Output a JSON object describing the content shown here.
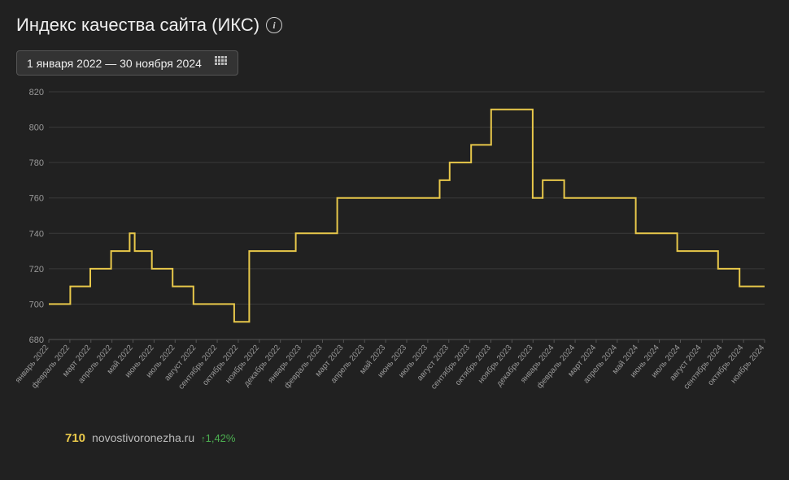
{
  "title": "Индекс качества сайта (ИКС)",
  "date_range": "1 января 2022 — 30 ноября 2024",
  "footer": {
    "value": "710",
    "domain": "novostivoronezha.ru",
    "change": "1,42%"
  },
  "chart": {
    "type": "step-line",
    "background_color": "#212121",
    "grid_color": "#3a3a3a",
    "axis_color": "#555",
    "line_color": "#e8c84a",
    "line_width": 2,
    "ylim": [
      680,
      820
    ],
    "ytick_step": 20,
    "y_ticks": [
      680,
      700,
      720,
      740,
      760,
      780,
      800,
      820
    ],
    "label_color": "#999",
    "label_fontsize": 11,
    "x_labels": [
      "январь 2022",
      "февраль 2022",
      "март 2022",
      "апрель 2022",
      "май 2022",
      "июнь 2022",
      "июль 2022",
      "август 2022",
      "сентябрь 2022",
      "октябрь 2022",
      "ноябрь 2022",
      "декабрь 2022",
      "январь 2023",
      "февраль 2023",
      "март 2023",
      "апрель 2023",
      "май 2023",
      "июнь 2023",
      "июль 2023",
      "август 2023",
      "сентябрь 2023",
      "октябрь 2023",
      "ноябрь 2023",
      "декабрь 2023",
      "январь 2024",
      "февраль 2024",
      "март 2024",
      "апрель 2024",
      "май 2024",
      "июнь 2024",
      "июль 2024",
      "август 2024",
      "сентябрь 2024",
      "октябрь 2024",
      "ноябрь 2024"
    ],
    "points": [
      {
        "x": 0.0,
        "y": 700
      },
      {
        "x": 0.03,
        "y": 700
      },
      {
        "x": 0.03,
        "y": 710
      },
      {
        "x": 0.058,
        "y": 710
      },
      {
        "x": 0.058,
        "y": 720
      },
      {
        "x": 0.087,
        "y": 720
      },
      {
        "x": 0.087,
        "y": 730
      },
      {
        "x": 0.113,
        "y": 730
      },
      {
        "x": 0.113,
        "y": 740
      },
      {
        "x": 0.12,
        "y": 740
      },
      {
        "x": 0.12,
        "y": 730
      },
      {
        "x": 0.144,
        "y": 730
      },
      {
        "x": 0.144,
        "y": 720
      },
      {
        "x": 0.173,
        "y": 720
      },
      {
        "x": 0.173,
        "y": 710
      },
      {
        "x": 0.202,
        "y": 710
      },
      {
        "x": 0.202,
        "y": 700
      },
      {
        "x": 0.259,
        "y": 700
      },
      {
        "x": 0.259,
        "y": 690
      },
      {
        "x": 0.28,
        "y": 690
      },
      {
        "x": 0.28,
        "y": 730
      },
      {
        "x": 0.345,
        "y": 730
      },
      {
        "x": 0.345,
        "y": 740
      },
      {
        "x": 0.403,
        "y": 740
      },
      {
        "x": 0.403,
        "y": 760
      },
      {
        "x": 0.546,
        "y": 760
      },
      {
        "x": 0.546,
        "y": 770
      },
      {
        "x": 0.56,
        "y": 770
      },
      {
        "x": 0.56,
        "y": 780
      },
      {
        "x": 0.59,
        "y": 780
      },
      {
        "x": 0.59,
        "y": 790
      },
      {
        "x": 0.618,
        "y": 790
      },
      {
        "x": 0.618,
        "y": 810
      },
      {
        "x": 0.676,
        "y": 810
      },
      {
        "x": 0.676,
        "y": 760
      },
      {
        "x": 0.69,
        "y": 760
      },
      {
        "x": 0.69,
        "y": 770
      },
      {
        "x": 0.72,
        "y": 770
      },
      {
        "x": 0.72,
        "y": 760
      },
      {
        "x": 0.82,
        "y": 760
      },
      {
        "x": 0.82,
        "y": 740
      },
      {
        "x": 0.878,
        "y": 740
      },
      {
        "x": 0.878,
        "y": 730
      },
      {
        "x": 0.935,
        "y": 730
      },
      {
        "x": 0.935,
        "y": 720
      },
      {
        "x": 0.965,
        "y": 720
      },
      {
        "x": 0.965,
        "y": 710
      },
      {
        "x": 1.0,
        "y": 710
      }
    ]
  }
}
